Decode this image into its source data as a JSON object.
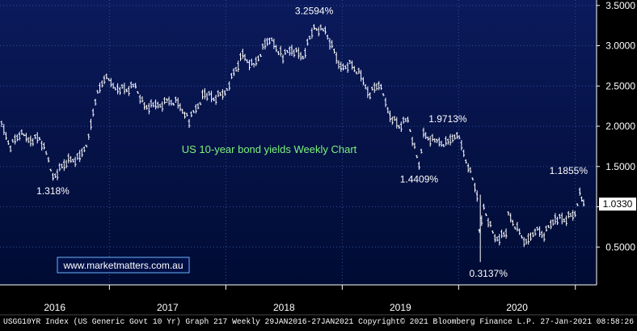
{
  "colors": {
    "background": "#000000",
    "plot_background_top": "#0b1a5c",
    "plot_background_bottom": "#000b33",
    "price_line": "#ffffff",
    "grid": "#2f4f9a",
    "axis_text": "#ffffff",
    "title_text": "#7cf27c",
    "link_border": "#6bb6ff",
    "link_text": "#ffffff"
  },
  "chart_data": {
    "type": "line",
    "title": "US 10-year bond yields Weekly Chart",
    "xlabel": "",
    "ylabel": "",
    "ylim": [
      0.0,
      3.5
    ],
    "y_ticks": [
      "3.5000",
      "3.0000",
      "2.5000",
      "2.0000",
      "1.5000",
      "1.0000",
      "0.5000"
    ],
    "x_ticks": [
      "2016",
      "2017",
      "2018",
      "2019",
      "2020"
    ],
    "last_value_label": "1.0330",
    "grid": true,
    "series": [
      {
        "x": [
          "2016-01-29",
          "2016-02-26",
          "2016-03-25",
          "2016-04-29",
          "2016-05-27",
          "2016-06-24",
          "2016-07-08",
          "2016-08-26",
          "2016-09-30",
          "2016-10-28",
          "2016-11-18",
          "2016-12-16",
          "2017-01-27",
          "2017-02-24",
          "2017-03-24",
          "2017-04-21",
          "2017-05-26",
          "2017-06-30",
          "2017-07-28",
          "2017-08-25",
          "2017-09-08",
          "2017-10-27",
          "2017-11-24",
          "2017-12-29",
          "2018-01-26",
          "2018-02-23",
          "2018-03-30",
          "2018-04-27",
          "2018-05-18",
          "2018-06-29",
          "2018-07-27",
          "2018-08-31",
          "2018-10-05",
          "2018-11-09",
          "2018-12-28",
          "2019-01-25",
          "2019-02-22",
          "2019-03-29",
          "2019-04-26",
          "2019-05-31",
          "2019-06-28",
          "2019-07-26",
          "2019-08-30",
          "2019-09-13",
          "2019-10-25",
          "2019-11-29",
          "2019-12-27",
          "2020-01-31",
          "2020-02-28",
          "2020-03-06",
          "2020-03-20",
          "2020-04-24",
          "2020-05-29",
          "2020-06-05",
          "2020-07-31",
          "2020-08-28",
          "2020-09-25",
          "2020-10-30",
          "2020-11-27",
          "2020-12-31",
          "2021-01-15",
          "2021-01-27"
        ],
        "values": [
          2.0,
          1.75,
          1.9,
          1.83,
          1.85,
          1.58,
          1.36,
          1.58,
          1.6,
          1.84,
          2.33,
          2.6,
          2.48,
          2.45,
          2.5,
          2.24,
          2.25,
          2.3,
          2.3,
          2.17,
          2.06,
          2.42,
          2.34,
          2.41,
          2.66,
          2.88,
          2.74,
          2.96,
          3.09,
          2.86,
          2.96,
          2.86,
          3.23,
          3.18,
          2.72,
          2.78,
          2.66,
          2.41,
          2.53,
          2.14,
          2.0,
          2.08,
          1.5,
          1.9,
          1.8,
          1.78,
          1.92,
          1.51,
          1.15,
          0.71,
          1.0,
          0.6,
          0.65,
          0.9,
          0.54,
          0.72,
          0.65,
          0.87,
          0.84,
          0.91,
          1.18,
          1.033
        ]
      }
    ],
    "annotations": [
      {
        "text": "3.2594%",
        "x": "2018-10-05",
        "y": 3.2594
      },
      {
        "text": "1.9713%",
        "x": "2019-12-13",
        "y": 1.9713
      },
      {
        "text": "1.318%",
        "x": "2016-07-08",
        "y": 1.318
      },
      {
        "text": "1.4409%",
        "x": "2019-08-30",
        "y": 1.4409
      },
      {
        "text": "0.3137%",
        "x": "2020-03-09",
        "y": 0.3137
      },
      {
        "text": "1.1855%",
        "x": "2021-01-15",
        "y": 1.1855
      }
    ]
  },
  "watermark_link": "www.marketmatters.com.au",
  "footer": {
    "text": "USGG10YR Index (US Generic Govt 10 Yr) Graph 217  Weekly 29JAN2016-27JAN2021  Copyright© 2021 Bloomberg Finance L.P.  27-Jan-2021 08:58:26"
  }
}
